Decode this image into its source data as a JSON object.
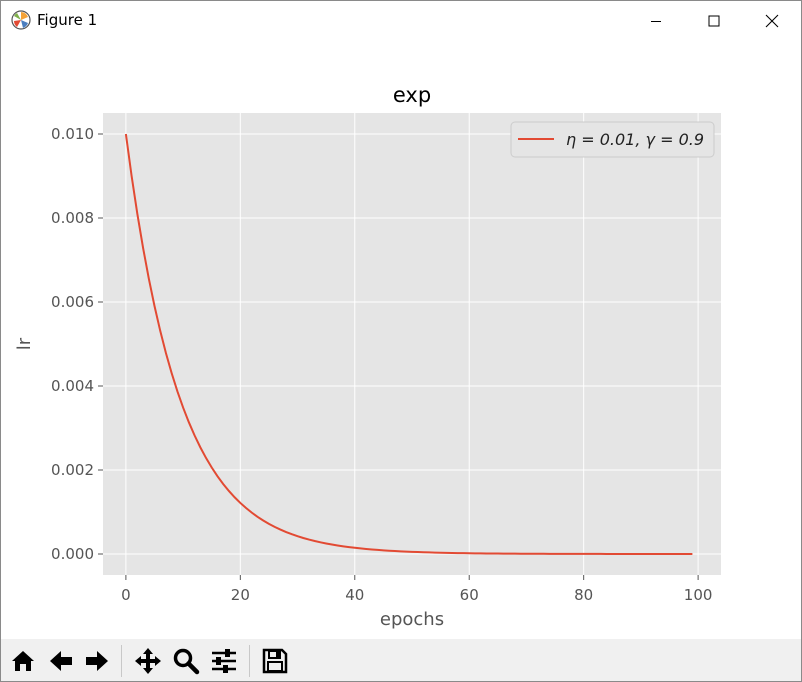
{
  "window": {
    "title": "Figure 1"
  },
  "chart_data": {
    "type": "line",
    "title": "exp",
    "xlabel": "epochs",
    "ylabel": "lr",
    "xlim": [
      -4,
      104
    ],
    "ylim": [
      -0.0005,
      0.0105
    ],
    "xticks": [
      "0",
      "20",
      "40",
      "60",
      "80",
      "100"
    ],
    "yticks": [
      "0.000",
      "0.002",
      "0.004",
      "0.006",
      "0.008",
      "0.010"
    ],
    "grid": true,
    "legend_position": "upper-right",
    "series": [
      {
        "name": "η = 0.01, γ = 0.9",
        "color": "#e24a33",
        "eta": 0.01,
        "gamma": 0.9,
        "x_start": 0,
        "x_end": 99
      }
    ]
  },
  "toolbar": {
    "buttons": [
      {
        "name": "home",
        "icon": "home-icon"
      },
      {
        "name": "back",
        "icon": "left-arrow-icon"
      },
      {
        "name": "forward",
        "icon": "right-arrow-icon"
      },
      {
        "name": "pan",
        "icon": "move-icon"
      },
      {
        "name": "zoom",
        "icon": "magnifier-icon"
      },
      {
        "name": "configure",
        "icon": "sliders-icon"
      },
      {
        "name": "save",
        "icon": "floppy-disk-icon"
      }
    ]
  }
}
